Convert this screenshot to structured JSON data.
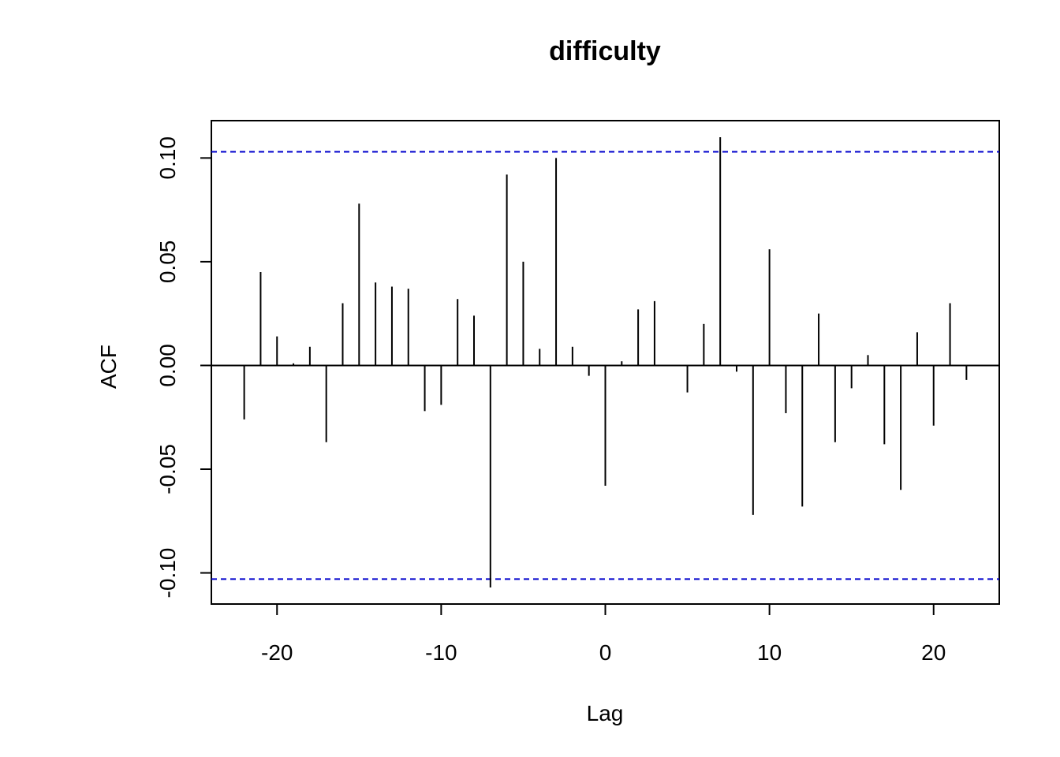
{
  "chart_data": {
    "type": "bar",
    "title": "difficulty",
    "xlabel": "Lag",
    "ylabel": "ACF",
    "xlim": [
      -24,
      24
    ],
    "ylim": [
      -0.115,
      0.118
    ],
    "x_ticks": [
      -20,
      -10,
      0,
      10,
      20
    ],
    "x_tick_labels": [
      "-20",
      "-10",
      "0",
      "10",
      "20"
    ],
    "y_ticks": [
      -0.1,
      -0.05,
      0.0,
      0.05,
      0.1
    ],
    "y_tick_labels": [
      "-0.10",
      "-0.05",
      "0.00",
      "0.05",
      "0.10"
    ],
    "confidence_bound": 0.103,
    "confidence_color": "#0000cc",
    "bar_color": "#000000",
    "lags": [
      -22,
      -21,
      -20,
      -19,
      -18,
      -17,
      -16,
      -15,
      -14,
      -13,
      -12,
      -11,
      -10,
      -9,
      -8,
      -7,
      -6,
      -5,
      -4,
      -3,
      -2,
      -1,
      0,
      1,
      2,
      3,
      4,
      5,
      6,
      7,
      8,
      9,
      10,
      11,
      12,
      13,
      14,
      15,
      16,
      17,
      18,
      19,
      20,
      21,
      22
    ],
    "values": [
      -0.026,
      0.045,
      0.014,
      0.001,
      0.009,
      -0.037,
      0.03,
      0.078,
      0.04,
      0.038,
      0.037,
      -0.022,
      -0.019,
      0.032,
      0.024,
      -0.107,
      0.092,
      0.05,
      0.008,
      0.1,
      0.009,
      -0.005,
      -0.058,
      0.002,
      0.027,
      0.031,
      0.0,
      -0.013,
      0.02,
      0.11,
      -0.003,
      -0.072,
      0.056,
      -0.023,
      -0.068,
      0.025,
      -0.037,
      -0.011,
      0.005,
      -0.038,
      -0.06,
      0.016,
      -0.029,
      0.03,
      -0.007
    ],
    "grid": false
  }
}
